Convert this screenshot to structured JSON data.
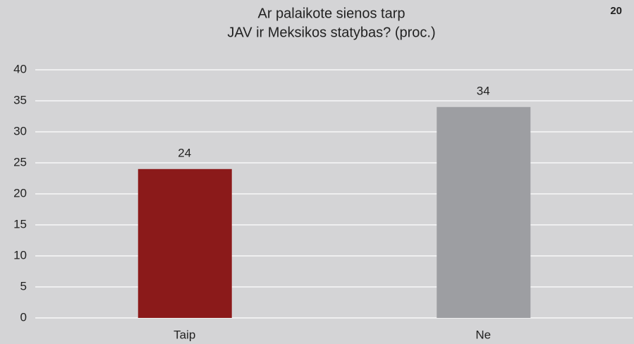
{
  "page_number": "20",
  "chart_data": {
    "type": "bar",
    "title": [
      "Ar palaikote sienos tarp",
      "JAV ir Meksikos statybas? (proc.)"
    ],
    "categories": [
      "Taip",
      "Ne"
    ],
    "values": [
      24,
      34
    ],
    "colors": [
      "#8b1a1a",
      "#9d9ea2"
    ],
    "ylim": [
      0,
      40
    ],
    "yticks": [
      0,
      5,
      10,
      15,
      20,
      25,
      30,
      35,
      40
    ],
    "grid": true
  }
}
